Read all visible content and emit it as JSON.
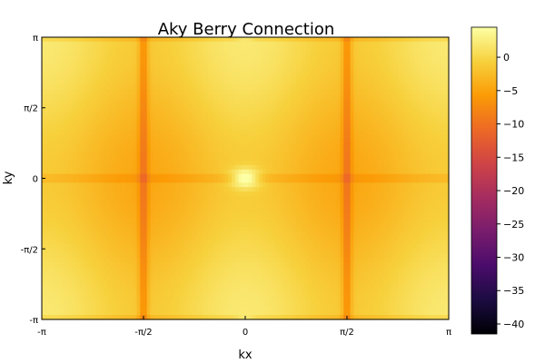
{
  "chart_data": {
    "type": "heatmap",
    "title": "Aky Berry Connection",
    "xlabel": "kx",
    "ylabel": "ky",
    "xlim": [
      -3.14159,
      3.14159
    ],
    "ylim": [
      -3.14159,
      3.14159
    ],
    "x_ticks": [
      {
        "value": -3.14159,
        "label": "-π"
      },
      {
        "value": -1.5708,
        "label": "-π/2"
      },
      {
        "value": 0,
        "label": "0"
      },
      {
        "value": 1.5708,
        "label": "π/2"
      },
      {
        "value": 3.14159,
        "label": "π"
      }
    ],
    "y_ticks": [
      {
        "value": -3.14159,
        "label": "-π"
      },
      {
        "value": -1.5708,
        "label": "-π/2"
      },
      {
        "value": 0,
        "label": "0"
      },
      {
        "value": 1.5708,
        "label": "π/2"
      },
      {
        "value": 3.14159,
        "label": "π"
      }
    ],
    "colorbar": {
      "colormap": "inferno",
      "range": [
        -41.5,
        4.5
      ],
      "ticks": [
        0,
        -5,
        -10,
        -15,
        -20,
        -25,
        -30,
        -35,
        -40
      ],
      "tick_labels": [
        "0",
        "−5",
        "−10",
        "−15",
        "−20",
        "−25",
        "−30",
        "−35",
        "−40"
      ]
    },
    "field": {
      "description_values": "Mostly −10 to +4; maxima (~+3) near k=(0,±π) and (±π,0), minima (~−10) along lines kx=±π/2 and ky=0",
      "sample_resolution": [
        120,
        64
      ]
    },
    "grid": false,
    "legend": "none"
  },
  "colors": {
    "background": "#ffffff",
    "axis": "#000000",
    "colormap_stops": [
      "#000004",
      "#1b0c41",
      "#4a0c6b",
      "#781c6d",
      "#a52c60",
      "#cf4446",
      "#ed6925",
      "#fb9b06",
      "#f7d13d",
      "#fcffa4"
    ]
  }
}
